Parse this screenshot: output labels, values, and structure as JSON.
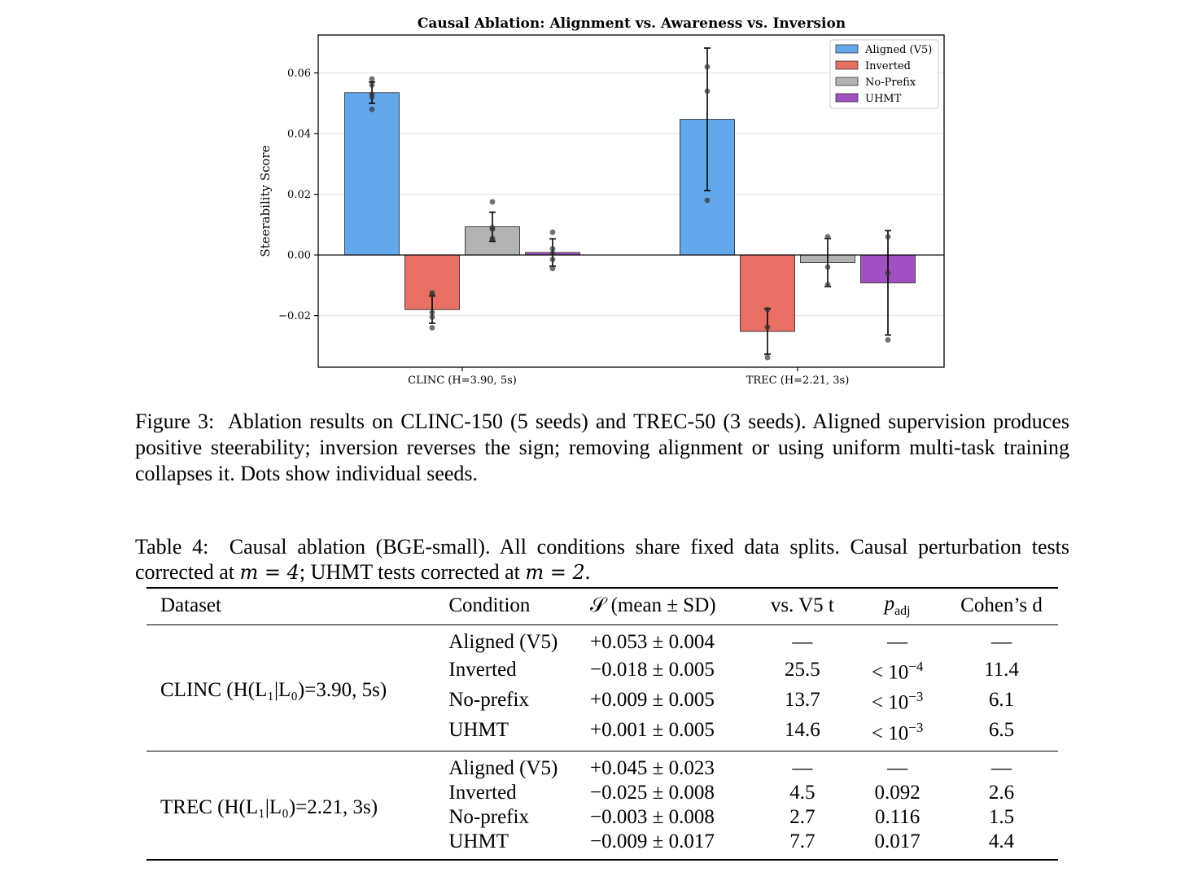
{
  "chart_data": {
    "type": "bar",
    "title": "Causal Ablation: Alignment vs. Awareness vs. Inversion",
    "xlabel": "",
    "ylabel": "Steerability Score",
    "categories": [
      "CLINC (H=3.90, 5s)",
      "TREC (H=2.21, 3s)"
    ],
    "ylim": [
      -0.037,
      0.0725
    ],
    "yticks": [
      -0.02,
      0.0,
      0.02,
      0.04,
      0.06
    ],
    "ytick_labels": [
      "−0.02",
      "0.00",
      "0.02",
      "0.04",
      "0.06"
    ],
    "grid": "horizontal",
    "legend_position": "top-right",
    "series": [
      {
        "name": "Aligned (V5)",
        "color": "#64a8ec",
        "values": [
          0.0535,
          0.0447
        ],
        "errors": [
          0.0035,
          0.0235
        ],
        "points": [
          [
            0.058,
            0.056,
            0.053,
            0.052,
            0.048
          ],
          [
            0.062,
            0.054,
            0.018
          ]
        ]
      },
      {
        "name": "Inverted",
        "color": "#e87064",
        "values": [
          -0.018,
          -0.0252
        ],
        "errors": [
          0.0045,
          0.0075
        ],
        "points": [
          [
            -0.0125,
            -0.013,
            -0.019,
            -0.0205,
            -0.024
          ],
          [
            -0.018,
            -0.0238,
            -0.0338
          ]
        ]
      },
      {
        "name": "No-Prefix",
        "color": "#b3b3b3",
        "values": [
          0.0093,
          -0.0025
        ],
        "errors": [
          0.0048,
          0.0079
        ],
        "points": [
          [
            0.0175,
            0.009,
            0.0085,
            0.0055,
            0.005
          ],
          [
            0.006,
            -0.004,
            -0.0098
          ]
        ]
      },
      {
        "name": "UHMT",
        "color": "#a050c0",
        "values": [
          0.0008,
          -0.0092
        ],
        "errors": [
          0.0045,
          0.0172
        ],
        "points": [
          [
            0.0075,
            0.002,
            0.0005,
            -0.0015,
            -0.0045
          ],
          [
            0.006,
            -0.006,
            -0.028
          ]
        ]
      }
    ]
  },
  "figure_caption": {
    "lead": "Figure 3:",
    "text": "Ablation results on CLINC-150 (5 seeds) and TREC-50 (3 seeds). Aligned supervision produces positive steerability; inversion reverses the sign; removing alignment or using uniform multi-task training collapses it. Dots show individual seeds."
  },
  "table_caption": {
    "lead": "Table 4:",
    "part1": "Causal ablation (BGE-small). All conditions share fixed data splits. Causal perturbation tests corrected at ",
    "m1": "m = 4",
    "part2": "; UHMT tests corrected at ",
    "m2": "m = 2",
    "part3": "."
  },
  "table": {
    "headers": {
      "dataset": "Dataset",
      "condition": "Condition",
      "score": "𝒮 (mean ± SD)",
      "t": "vs. V5 t",
      "p": "p",
      "p_sub": "adj",
      "d": "Cohen’s d"
    },
    "groups": [
      {
        "dataset": "CLINC (H(L₁|L₀)=3.90, 5s)",
        "rows": [
          {
            "condition": "Aligned (V5)",
            "score": "+0.053 ± 0.004",
            "t": "—",
            "p": "—",
            "p_exp": "",
            "d": "—"
          },
          {
            "condition": "Inverted",
            "score": "−0.018 ± 0.005",
            "t": "25.5",
            "p": "< 10",
            "p_exp": "−4",
            "d": "11.4"
          },
          {
            "condition": "No-prefix",
            "score": "+0.009 ± 0.005",
            "t": "13.7",
            "p": "< 10",
            "p_exp": "−3",
            "d": "6.1"
          },
          {
            "condition": "UHMT",
            "score": "+0.001 ± 0.005",
            "t": "14.6",
            "p": "< 10",
            "p_exp": "−3",
            "d": "6.5"
          }
        ]
      },
      {
        "dataset": "TREC (H(L₁|L₀)=2.21, 3s)",
        "rows": [
          {
            "condition": "Aligned (V5)",
            "score": "+0.045 ± 0.023",
            "t": "—",
            "p": "—",
            "p_exp": "",
            "d": "—"
          },
          {
            "condition": "Inverted",
            "score": "−0.025 ± 0.008",
            "t": "4.5",
            "p": "0.092",
            "p_exp": "",
            "d": "2.6"
          },
          {
            "condition": "No-prefix",
            "score": "−0.003 ± 0.008",
            "t": "2.7",
            "p": "0.116",
            "p_exp": "",
            "d": "1.5"
          },
          {
            "condition": "UHMT",
            "score": "−0.009 ± 0.017",
            "t": "7.7",
            "p": "0.017",
            "p_exp": "",
            "d": "4.4"
          }
        ]
      }
    ]
  }
}
